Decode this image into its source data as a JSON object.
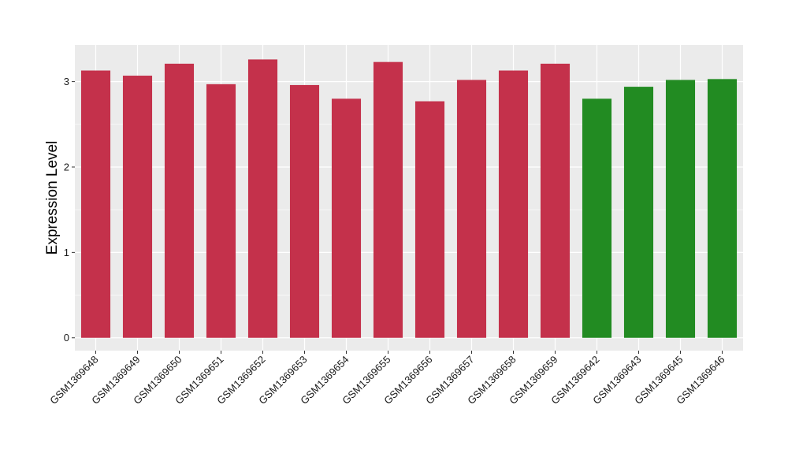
{
  "chart_data": {
    "type": "bar",
    "ylabel": "Expression Level",
    "ylim": [
      -0.15,
      3.43
    ],
    "yticks": [
      0,
      1,
      2,
      3
    ],
    "grid": true,
    "colors": {
      "group_a": "#C4314B",
      "group_b": "#228B22",
      "panel": "#EBEBEB",
      "grid": "#FFFFFF"
    },
    "bars": [
      {
        "category": "GSM1369648",
        "value": 3.13,
        "group": "group_a"
      },
      {
        "category": "GSM1369649",
        "value": 3.07,
        "group": "group_a"
      },
      {
        "category": "GSM1369650",
        "value": 3.21,
        "group": "group_a"
      },
      {
        "category": "GSM1369651",
        "value": 2.97,
        "group": "group_a"
      },
      {
        "category": "GSM1369652",
        "value": 3.26,
        "group": "group_a"
      },
      {
        "category": "GSM1369653",
        "value": 2.96,
        "group": "group_a"
      },
      {
        "category": "GSM1369654",
        "value": 2.8,
        "group": "group_a"
      },
      {
        "category": "GSM1369655",
        "value": 3.23,
        "group": "group_a"
      },
      {
        "category": "GSM1369656",
        "value": 2.77,
        "group": "group_a"
      },
      {
        "category": "GSM1369657",
        "value": 3.02,
        "group": "group_a"
      },
      {
        "category": "GSM1369658",
        "value": 3.13,
        "group": "group_a"
      },
      {
        "category": "GSM1369659",
        "value": 3.21,
        "group": "group_a"
      },
      {
        "category": "GSM1369642",
        "value": 2.8,
        "group": "group_b"
      },
      {
        "category": "GSM1369643",
        "value": 2.94,
        "group": "group_b"
      },
      {
        "category": "GSM1369645",
        "value": 3.02,
        "group": "group_b"
      },
      {
        "category": "GSM1369646",
        "value": 3.03,
        "group": "group_b"
      }
    ]
  }
}
